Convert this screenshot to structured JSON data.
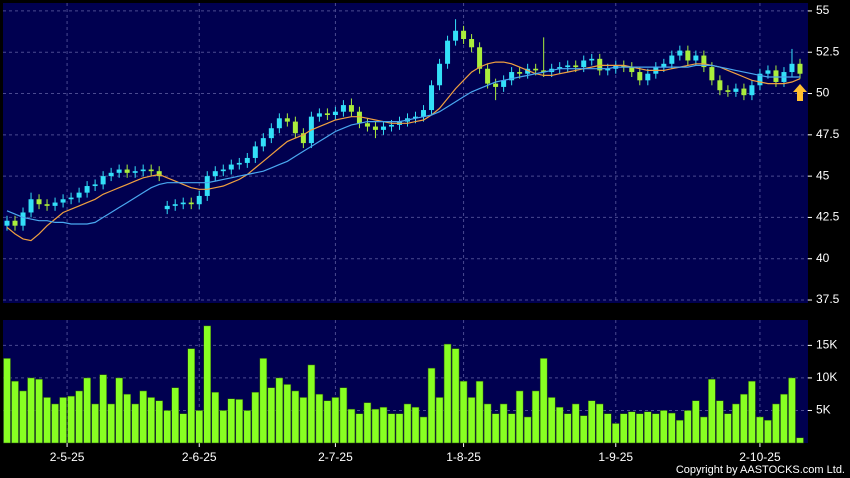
{
  "chart_data": [
    {
      "type": "candlestick",
      "xlim": [
        -0.5,
        100
      ],
      "ylim": [
        37.32,
        55.48
      ],
      "yticks": [
        37.5,
        40,
        42.5,
        45,
        47.5,
        50,
        52.5,
        55
      ],
      "grid": true,
      "up_color": "#33e0f8",
      "down_color": "#aaee3c",
      "open": [
        42.0,
        42.3,
        42.0,
        42.8,
        43.6,
        43.3,
        43.2,
        43.4,
        43.6,
        43.7,
        44.0,
        44.4,
        44.5,
        45.0,
        45.2,
        45.4,
        45.2,
        45.3,
        45.4,
        45.3,
        43.0,
        43.2,
        43.3,
        43.4,
        43.3,
        43.8,
        45.0,
        45.3,
        45.4,
        45.7,
        45.8,
        46.1,
        46.8,
        47.3,
        47.9,
        48.5,
        48.3,
        47.6,
        47.0,
        48.6,
        48.8,
        48.7,
        48.9,
        49.3,
        48.9,
        48.2,
        48.0,
        47.8,
        48.0,
        48.1,
        48.3,
        48.5,
        48.6,
        49.0,
        50.5,
        51.8,
        53.2,
        53.8,
        53.3,
        52.8,
        51.5,
        50.6,
        50.4,
        50.8,
        51.3,
        51.2,
        51.5,
        51.4,
        51.3,
        51.5,
        51.6,
        51.7,
        51.6,
        52.0,
        52.1,
        51.4,
        51.5,
        51.7,
        51.6,
        51.3,
        50.8,
        51.2,
        51.6,
        51.8,
        52.3,
        52.6,
        52.0,
        52.3,
        51.6,
        50.8,
        50.2,
        50.1,
        50.3,
        49.9,
        50.5,
        51.2,
        51.4,
        50.7,
        51.3,
        51.8
      ],
      "high": [
        42.6,
        42.6,
        43.1,
        44.0,
        43.9,
        43.6,
        43.7,
        43.9,
        44.0,
        44.3,
        44.7,
        44.8,
        45.3,
        45.5,
        45.7,
        45.7,
        45.6,
        45.7,
        45.7,
        45.6,
        43.5,
        43.6,
        43.7,
        43.7,
        44.1,
        45.3,
        45.6,
        45.7,
        46.0,
        46.1,
        46.4,
        47.1,
        47.6,
        48.2,
        48.8,
        48.8,
        48.6,
        47.9,
        48.9,
        49.1,
        49.1,
        49.2,
        49.6,
        49.7,
        49.2,
        48.5,
        48.3,
        48.3,
        48.4,
        48.6,
        48.8,
        48.9,
        49.3,
        50.8,
        52.1,
        53.5,
        54.5,
        54.1,
        53.6,
        53.1,
        51.8,
        50.9,
        51.1,
        51.6,
        51.6,
        51.8,
        51.8,
        53.4,
        51.8,
        51.9,
        52.0,
        52.0,
        52.3,
        52.4,
        52.4,
        51.8,
        52.0,
        52.0,
        51.9,
        51.6,
        51.5,
        51.9,
        52.1,
        52.6,
        52.9,
        52.9,
        52.6,
        52.6,
        51.9,
        51.1,
        50.5,
        50.6,
        50.6,
        50.8,
        51.5,
        51.7,
        51.7,
        51.6,
        52.7,
        52.1
      ],
      "low": [
        41.7,
        41.7,
        41.7,
        42.5,
        43.0,
        42.9,
        42.9,
        43.1,
        43.3,
        43.4,
        43.7,
        44.1,
        44.2,
        44.7,
        44.9,
        44.9,
        44.9,
        45.0,
        45.0,
        44.7,
        42.7,
        42.9,
        43.0,
        43.0,
        43.0,
        43.5,
        44.7,
        45.0,
        45.1,
        45.4,
        45.5,
        45.8,
        46.5,
        47.0,
        47.6,
        48.0,
        47.3,
        46.7,
        46.7,
        48.3,
        48.4,
        48.4,
        48.6,
        48.6,
        47.9,
        47.7,
        47.3,
        47.5,
        47.7,
        47.8,
        48.0,
        48.2,
        48.3,
        48.7,
        50.2,
        51.5,
        52.9,
        53.0,
        52.5,
        51.2,
        50.3,
        49.6,
        50.1,
        50.5,
        50.9,
        50.9,
        51.1,
        51.0,
        51.0,
        51.2,
        51.3,
        51.3,
        51.3,
        51.7,
        51.1,
        51.1,
        51.2,
        51.3,
        51.0,
        50.5,
        50.5,
        50.9,
        51.3,
        51.5,
        52.0,
        51.7,
        51.7,
        51.3,
        50.5,
        49.9,
        49.8,
        49.8,
        49.6,
        49.6,
        50.2,
        50.9,
        50.4,
        50.4,
        51.0,
        50.9
      ],
      "close": [
        42.3,
        42.0,
        42.8,
        43.6,
        43.3,
        43.2,
        43.4,
        43.6,
        43.7,
        44.0,
        44.4,
        44.5,
        45.0,
        45.2,
        45.4,
        45.2,
        45.3,
        45.4,
        45.3,
        45.0,
        43.2,
        43.3,
        43.4,
        43.3,
        43.8,
        45.0,
        45.3,
        45.4,
        45.7,
        45.8,
        46.1,
        46.8,
        47.3,
        47.9,
        48.5,
        48.3,
        47.6,
        47.0,
        48.6,
        48.8,
        48.7,
        48.9,
        49.3,
        48.9,
        48.2,
        48.0,
        47.8,
        48.0,
        48.1,
        48.3,
        48.5,
        48.6,
        49.0,
        50.5,
        51.8,
        53.2,
        53.8,
        53.3,
        52.8,
        51.5,
        50.6,
        50.4,
        50.8,
        51.3,
        51.2,
        51.5,
        51.4,
        51.3,
        51.5,
        51.6,
        51.7,
        51.6,
        52.0,
        52.1,
        51.4,
        51.5,
        51.7,
        51.6,
        51.3,
        50.8,
        51.2,
        51.6,
        51.8,
        52.3,
        52.6,
        52.0,
        52.3,
        51.6,
        50.8,
        50.2,
        50.1,
        50.3,
        49.9,
        50.5,
        51.2,
        51.4,
        50.7,
        51.3,
        51.8,
        51.2
      ],
      "lines": [
        {
          "color": "#f0a040",
          "values": [
            41.9,
            41.5,
            41.2,
            41.1,
            41.5,
            42.0,
            42.4,
            42.8,
            43.0,
            43.2,
            43.4,
            43.6,
            43.9,
            44.1,
            44.3,
            44.5,
            44.7,
            44.9,
            45.0,
            45.1,
            44.9,
            44.7,
            44.5,
            44.3,
            44.2,
            44.2,
            44.3,
            44.4,
            44.6,
            44.8,
            45.1,
            45.5,
            45.9,
            46.3,
            46.7,
            47.1,
            47.3,
            47.5,
            47.8,
            48.0,
            48.2,
            48.4,
            48.5,
            48.6,
            48.6,
            48.5,
            48.4,
            48.3,
            48.2,
            48.2,
            48.2,
            48.3,
            48.4,
            48.7,
            49.1,
            49.7,
            50.3,
            50.8,
            51.3,
            51.6,
            51.8,
            51.9,
            51.9,
            51.8,
            51.6,
            51.4,
            51.2,
            51.1,
            51.1,
            51.2,
            51.3,
            51.4,
            51.5,
            51.6,
            51.7,
            51.7,
            51.7,
            51.7,
            51.6,
            51.5,
            51.4,
            51.4,
            51.4,
            51.5,
            51.6,
            51.7,
            51.8,
            51.8,
            51.7,
            51.6,
            51.4,
            51.2,
            51.0,
            50.8,
            50.7,
            50.6,
            50.6,
            50.6,
            50.7,
            50.9
          ]
        },
        {
          "color": "#4aa8f0",
          "values": [
            42.9,
            42.7,
            42.5,
            42.4,
            42.3,
            42.3,
            42.2,
            42.2,
            42.1,
            42.1,
            42.1,
            42.2,
            42.5,
            42.8,
            43.1,
            43.4,
            43.7,
            44.0,
            44.3,
            44.5,
            44.6,
            44.6,
            44.6,
            44.6,
            44.6,
            44.6,
            44.7,
            44.8,
            44.9,
            45.0,
            45.1,
            45.2,
            45.3,
            45.5,
            45.7,
            45.9,
            46.2,
            46.5,
            46.8,
            47.1,
            47.4,
            47.7,
            47.9,
            48.1,
            48.2,
            48.3,
            48.3,
            48.3,
            48.3,
            48.3,
            48.4,
            48.5,
            48.6,
            48.7,
            48.9,
            49.2,
            49.5,
            49.8,
            50.1,
            50.3,
            50.5,
            50.7,
            50.8,
            50.9,
            51.0,
            51.1,
            51.2,
            51.3,
            51.4,
            51.5,
            51.5,
            51.5,
            51.5,
            51.5,
            51.5,
            51.5,
            51.6,
            51.6,
            51.6,
            51.6,
            51.6,
            51.6,
            51.6,
            51.6,
            51.6,
            51.6,
            51.7,
            51.7,
            51.7,
            51.6,
            51.5,
            51.4,
            51.3,
            51.2,
            51.1,
            51.0,
            51.0,
            51.0,
            51.0,
            51.0
          ]
        }
      ]
    },
    {
      "type": "bar",
      "xlim": [
        -0.5,
        100
      ],
      "ylim": [
        0,
        18900
      ],
      "color": "#88ff22",
      "grid": true,
      "yticks": [
        {
          "value": 5000,
          "label": "5K"
        },
        {
          "value": 10000,
          "label": "10K"
        },
        {
          "value": 15000,
          "label": "15K"
        }
      ],
      "xticks": [
        {
          "value": 7.5,
          "label": "2-5-25"
        },
        {
          "value": 24,
          "label": "2-6-25"
        },
        {
          "value": 41,
          "label": "2-7-25"
        },
        {
          "value": 57,
          "label": "1-8-25"
        },
        {
          "value": 76,
          "label": "1-9-25"
        },
        {
          "value": 94,
          "label": "2-10-25"
        }
      ],
      "values": [
        13000,
        9500,
        8000,
        10000,
        9800,
        7000,
        6000,
        7000,
        7200,
        8000,
        10000,
        6000,
        10500,
        6000,
        10000,
        7500,
        6000,
        8000,
        7000,
        6500,
        5000,
        8500,
        4500,
        14500,
        5000,
        18000,
        7800,
        5000,
        6800,
        6700,
        5000,
        7800,
        13000,
        8500,
        10000,
        9000,
        8000,
        7000,
        12000,
        7500,
        6500,
        7000,
        8500,
        5200,
        4500,
        6200,
        5200,
        5500,
        4500,
        4500,
        6000,
        5500,
        4000,
        11500,
        7000,
        15200,
        14500,
        9500,
        7000,
        9500,
        6000,
        4500,
        6000,
        4500,
        8000,
        4000,
        8000,
        13000,
        7000,
        5500,
        4500,
        6000,
        4200,
        6500,
        6000,
        4500,
        3000,
        4500,
        4800,
        4500,
        4800,
        4500,
        5000,
        4600,
        3500,
        5000,
        6500,
        4000,
        9800,
        6500,
        4500,
        6000,
        7500,
        9500,
        4000,
        3500,
        6000,
        7500,
        10000,
        800
      ]
    }
  ],
  "footer": "Copyright by AASTOCKS.com Ltd."
}
